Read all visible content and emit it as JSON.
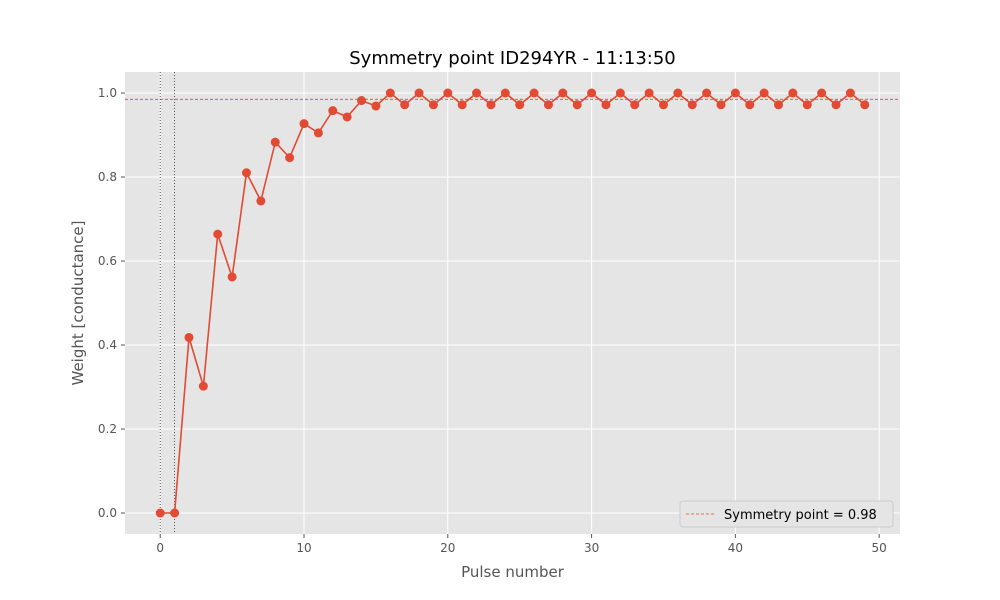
{
  "chart_data": {
    "type": "line",
    "title": "Symmetry point ID294YR - 11:13:50",
    "xlabel": "Pulse number",
    "ylabel": "Weight [conductance]",
    "xlim": [
      -2.45,
      51.45
    ],
    "ylim": [
      -0.05,
      1.05
    ],
    "xticks": [
      0,
      10,
      20,
      30,
      40,
      50
    ],
    "yticks": [
      0.0,
      0.2,
      0.4,
      0.6,
      0.8,
      1.0
    ],
    "xtick_labels": [
      "0",
      "10",
      "20",
      "30",
      "40",
      "50"
    ],
    "ytick_labels": [
      "0.0",
      "0.2",
      "0.4",
      "0.6",
      "0.8",
      "1.0"
    ],
    "grid": true,
    "legend_position": "bottom-right",
    "series": [
      {
        "color": "#E24A33",
        "marker": "circle",
        "x": [
          0,
          1,
          2,
          3,
          4,
          5,
          6,
          7,
          8,
          9,
          10,
          11,
          12,
          13,
          14,
          15,
          16,
          17,
          18,
          19,
          20,
          21,
          22,
          23,
          24,
          25,
          26,
          27,
          28,
          29,
          30,
          31,
          32,
          33,
          34,
          35,
          36,
          37,
          38,
          39,
          40,
          41,
          42,
          43,
          44,
          45,
          46,
          47,
          48,
          49
        ],
        "y": [
          0.0,
          0.0,
          0.418,
          0.302,
          0.664,
          0.562,
          0.81,
          0.743,
          0.883,
          0.846,
          0.927,
          0.905,
          0.958,
          0.943,
          0.982,
          0.969,
          1.0,
          0.972,
          1.0,
          0.972,
          1.0,
          0.972,
          1.0,
          0.972,
          1.0,
          0.972,
          1.0,
          0.972,
          1.0,
          0.972,
          1.0,
          0.972,
          1.0,
          0.972,
          1.0,
          0.972,
          1.0,
          0.972,
          1.0,
          0.972,
          1.0,
          0.972,
          1.0,
          0.972,
          1.0,
          0.972,
          1.0,
          0.972,
          1.0,
          0.972
        ]
      }
    ],
    "reference_lines": [
      {
        "orientation": "horizontal",
        "value": 0.985,
        "color": "#E24A33",
        "style": "dashed",
        "label": "Symmetry point = 0.98"
      },
      {
        "orientation": "vertical",
        "value": 0,
        "color": "#333333",
        "style": "dotted"
      },
      {
        "orientation": "vertical",
        "value": 1,
        "color": "#333333",
        "style": "dotted"
      }
    ]
  }
}
